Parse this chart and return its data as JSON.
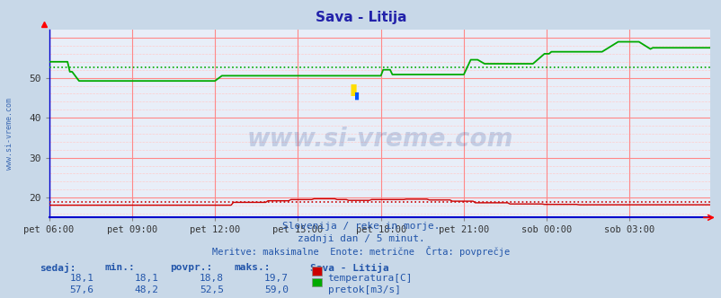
{
  "title": "Sava - Litija",
  "title_color": "#2222aa",
  "background_color": "#c8d8e8",
  "plot_bg_color": "#e8eef8",
  "grid_color_major": "#ff8888",
  "grid_color_minor": "#ffcccc",
  "xlabel_ticks": [
    "pet 06:00",
    "pet 09:00",
    "pet 12:00",
    "pet 15:00",
    "pet 18:00",
    "pet 21:00",
    "sob 00:00",
    "sob 03:00"
  ],
  "yticks": [
    20,
    30,
    40,
    50
  ],
  "ylim": [
    15.0,
    62.0
  ],
  "xlim": [
    0,
    287
  ],
  "watermark": "www.si-vreme.com",
  "watermark_color": "#1a3a8a",
  "watermark_alpha": 0.18,
  "subtitle1": "Slovenija / reke in morje.",
  "subtitle2": "zadnji dan / 5 minut.",
  "subtitle3": "Meritve: maksimalne  Enote: metrične  Črta: povprečje",
  "subtitle_color": "#2255aa",
  "footer_label_color": "#2255aa",
  "footer_headers": [
    "sedaj:",
    "min.:",
    "povpr.:",
    "maks.:"
  ],
  "footer_row1": [
    "18,1",
    "18,1",
    "18,8",
    "19,7"
  ],
  "footer_row2": [
    "57,6",
    "48,2",
    "52,5",
    "59,0"
  ],
  "footer_series1": "temperatura[C]",
  "footer_series2": "pretok[m3/s]",
  "footer_station": "Sava - Litija",
  "temp_color": "#cc0000",
  "flow_color": "#00aa00",
  "avg_temp": 18.8,
  "avg_flow": 52.5,
  "left_margin_label": "www.si-vreme.com",
  "left_label_color": "#2255aa",
  "spine_color": "#0000cc",
  "bottom_spine_color": "#0000cc"
}
